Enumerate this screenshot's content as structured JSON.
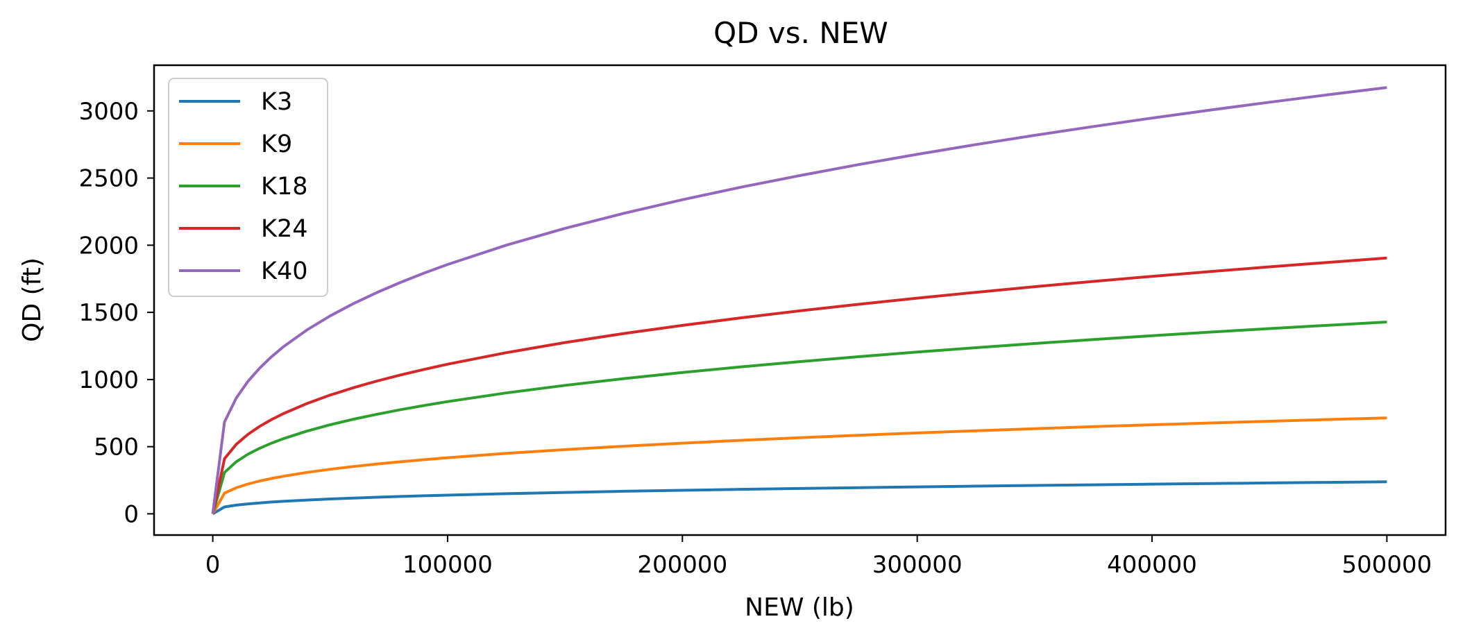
{
  "chart_data": {
    "type": "line",
    "title": "QD vs. NEW",
    "xlabel": "NEW (lb)",
    "ylabel": "QD (ft)",
    "xlim": [
      -25000,
      525000
    ],
    "ylim": [
      -158,
      3340
    ],
    "xticks": [
      0,
      100000,
      200000,
      300000,
      400000,
      500000
    ],
    "yticks": [
      0,
      500,
      1000,
      1500,
      2000,
      2500,
      3000
    ],
    "grid": false,
    "legend_position": "top-left",
    "x": [
      0,
      5000,
      10000,
      15000,
      20000,
      25000,
      30000,
      40000,
      50000,
      60000,
      70000,
      80000,
      90000,
      100000,
      125000,
      150000,
      175000,
      200000,
      225000,
      250000,
      275000,
      300000,
      325000,
      350000,
      375000,
      400000,
      425000,
      450000,
      475000,
      500000
    ],
    "series": [
      {
        "name": "K3",
        "color": "#1f77b4",
        "values": [
          0,
          51.3,
          64.6,
          74.0,
          81.4,
          87.7,
          93.2,
          102.6,
          110.5,
          117.4,
          123.6,
          129.3,
          134.4,
          139.2,
          150.0,
          159.4,
          167.8,
          175.4,
          182.4,
          188.9,
          195.0,
          200.8,
          206.2,
          211.4,
          216.3,
          221.0,
          225.5,
          229.9,
          234.0,
          238.1
        ]
      },
      {
        "name": "K9",
        "color": "#ff7f0e",
        "values": [
          0,
          153.9,
          193.9,
          222.0,
          244.3,
          263.2,
          279.7,
          307.8,
          331.6,
          352.3,
          370.9,
          387.8,
          403.3,
          417.7,
          450.0,
          478.2,
          503.3,
          526.2,
          547.2,
          566.7,
          585.0,
          602.3,
          618.6,
          634.1,
          648.9,
          663.0,
          676.6,
          689.6,
          702.1,
          714.2
        ]
      },
      {
        "name": "K18",
        "color": "#2ca02c",
        "values": [
          0,
          307.8,
          387.8,
          443.9,
          488.6,
          526.3,
          559.3,
          615.6,
          663.1,
          704.7,
          741.8,
          775.5,
          806.6,
          835.4,
          900.0,
          956.4,
          1006.7,
          1052.3,
          1094.4,
          1133.4,
          1170.0,
          1204.6,
          1237.2,
          1268.2,
          1297.8,
          1326.0,
          1353.1,
          1379.1,
          1404.1,
          1428.4
        ]
      },
      {
        "name": "K24",
        "color": "#d62728",
        "values": [
          0,
          410.4,
          517.1,
          591.9,
          651.4,
          701.8,
          745.7,
          820.8,
          884.2,
          939.6,
          989.0,
          1034.0,
          1075.5,
          1113.9,
          1200.0,
          1275.2,
          1342.3,
          1403.1,
          1459.2,
          1511.2,
          1560.0,
          1606.1,
          1649.6,
          1691.0,
          1730.4,
          1768.0,
          1804.1,
          1838.8,
          1872.2,
          1904.5
        ]
      },
      {
        "name": "K40",
        "color": "#9467bd",
        "values": [
          0,
          684.0,
          861.8,
          986.5,
          1085.7,
          1169.6,
          1242.9,
          1368.0,
          1473.6,
          1566.0,
          1648.4,
          1723.4,
          1792.5,
          1856.5,
          2000.0,
          2125.3,
          2237.2,
          2338.5,
          2432.0,
          2518.7,
          2600.0,
          2676.8,
          2749.3,
          2818.3,
          2884.0,
          2946.7,
          3006.8,
          3064.6,
          3120.4,
          3174.2
        ]
      }
    ]
  }
}
